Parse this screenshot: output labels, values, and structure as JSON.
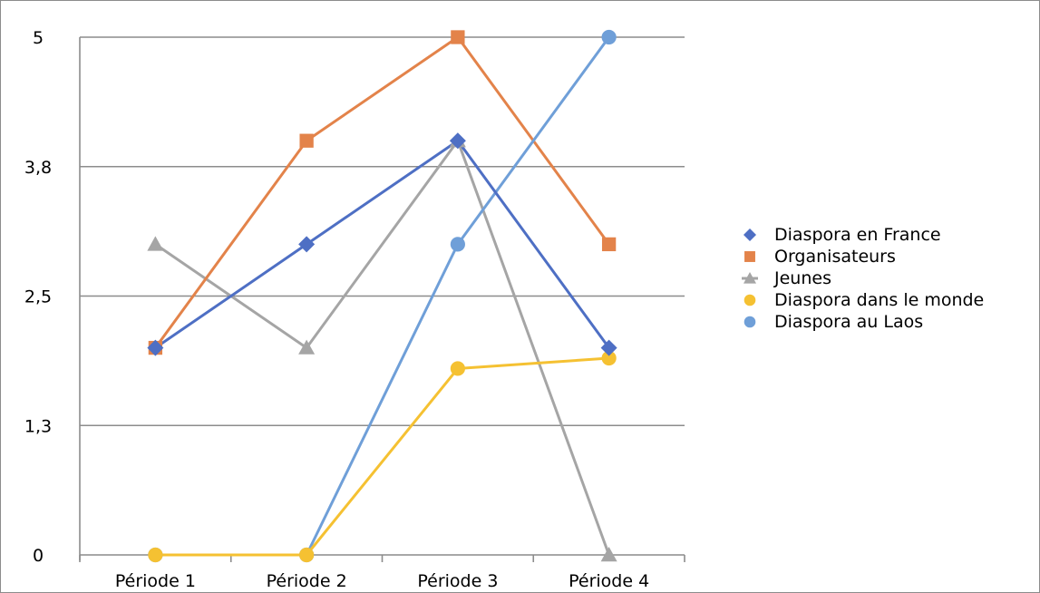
{
  "chart_data": {
    "type": "line",
    "categories": [
      "Période 1",
      "Période 2",
      "Période 3",
      "Période 4"
    ],
    "y_ticks": [
      "0",
      "1,3",
      "2,5",
      "3,8",
      "5"
    ],
    "ylim": [
      0,
      5
    ],
    "grid": true,
    "legend_position": "right",
    "series": [
      {
        "name": "Diaspora en France",
        "color": "#4e6fc4",
        "marker": "diamond",
        "values": [
          2,
          3,
          4,
          2
        ]
      },
      {
        "name": "Organisateurs",
        "color": "#e3834a",
        "marker": "square",
        "values": [
          2,
          4,
          5,
          3
        ]
      },
      {
        "name": "Jeunes",
        "color": "#a5a5a5",
        "marker": "triangle",
        "values": [
          3,
          2,
          4,
          0
        ]
      },
      {
        "name": "Diaspora dans le monde",
        "color": "#f5c132",
        "marker": "circle",
        "values": [
          0,
          0,
          1.8,
          1.9
        ]
      },
      {
        "name": "Diaspora au Laos",
        "color": "#6f9fd8",
        "marker": "circle",
        "values": [
          0,
          0,
          3,
          5
        ]
      }
    ]
  }
}
